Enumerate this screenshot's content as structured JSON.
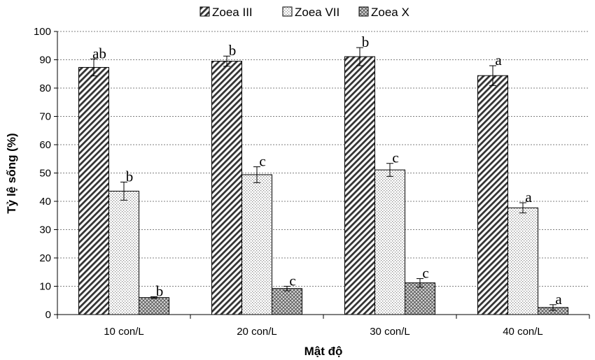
{
  "chart_data": {
    "type": "bar",
    "title": "",
    "xlabel": "Mật độ",
    "ylabel": "Tỷ lệ sống (%)",
    "categories": [
      "10 con/L",
      "20 con/L",
      "30 con/L",
      "40 con/L"
    ],
    "ylim": [
      0,
      100
    ],
    "yticks": [
      0,
      10,
      20,
      30,
      40,
      50,
      60,
      70,
      80,
      90,
      100
    ],
    "grid": true,
    "legend_position": "top",
    "series": [
      {
        "name": "Zoea III",
        "pattern": "diagonal-hatch",
        "values": [
          87.3,
          89.5,
          91.1,
          84.4
        ],
        "errors": [
          3.0,
          1.8,
          3.2,
          3.5
        ],
        "labels": [
          "ab",
          "b",
          "b",
          "a"
        ]
      },
      {
        "name": "Zoea VII",
        "pattern": "fine-dots",
        "values": [
          43.6,
          49.4,
          51.1,
          37.7
        ],
        "errors": [
          3.2,
          2.8,
          2.3,
          1.8
        ],
        "labels": [
          "b",
          "c",
          "c",
          "a"
        ]
      },
      {
        "name": "Zoea X",
        "pattern": "crosshatch",
        "values": [
          6.0,
          9.2,
          11.2,
          2.5
        ],
        "errors": [
          0.3,
          0.8,
          1.5,
          1.0
        ],
        "labels": [
          "b",
          "c",
          "c",
          "a"
        ]
      }
    ]
  }
}
